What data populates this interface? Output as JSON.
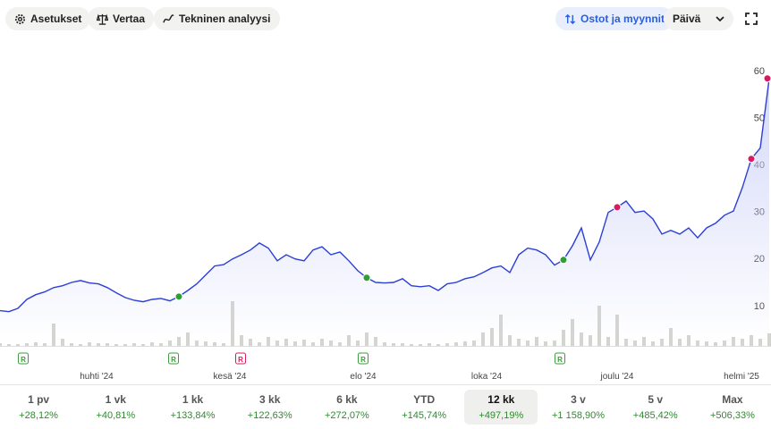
{
  "toolbar": {
    "settings": "Asetukset",
    "compare": "Vertaa",
    "technical": "Tekninen analyysi",
    "trades": "Ostot ja myynnit",
    "interval": "Päivä"
  },
  "chart_data": {
    "type": "line",
    "color": "#2b3fd6",
    "values": [
      8.9,
      8.7,
      9.4,
      11.3,
      12.3,
      12.9,
      13.8,
      14.2,
      14.9,
      15.3,
      14.8,
      14.6,
      13.8,
      12.7,
      11.7,
      11.1,
      10.8,
      11.3,
      11.5,
      11.0,
      11.9,
      13.2,
      14.6,
      16.5,
      18.4,
      18.7,
      19.9,
      20.8,
      21.8,
      23.3,
      22.2,
      19.5,
      20.8,
      19.9,
      19.5,
      21.8,
      22.5,
      20.8,
      21.4,
      19.5,
      17.4,
      15.9,
      14.9,
      14.8,
      14.9,
      15.7,
      14.2,
      14.0,
      14.2,
      13.2,
      14.6,
      14.9,
      15.7,
      16.1,
      17.0,
      18.0,
      18.4,
      17.0,
      20.8,
      22.2,
      21.8,
      20.8,
      18.6,
      19.7,
      22.7,
      26.5,
      19.7,
      23.5,
      29.8,
      30.9,
      32.2,
      29.8,
      30.1,
      28.4,
      25.2,
      26.0,
      25.2,
      26.5,
      24.4,
      26.5,
      27.5,
      29.2,
      30.1,
      35.1,
      41.2,
      43.5,
      58.3
    ],
    "ylim": [
      1.6,
      67
    ],
    "yticks": [
      10,
      20,
      30,
      40,
      50,
      60
    ],
    "xticks": [
      {
        "value": 10.8,
        "label": "huhti '24"
      },
      {
        "value": 25.7,
        "label": "kesä '24"
      },
      {
        "value": 40.6,
        "label": "elo '24"
      },
      {
        "value": 54.4,
        "label": "loka '24"
      },
      {
        "value": 69,
        "label": "joulu '24"
      },
      {
        "value": 82.9,
        "label": "helmi '25"
      }
    ],
    "markers": [
      {
        "index": 20,
        "color": "#2f9e35"
      },
      {
        "index": 41,
        "color": "#2f9e35"
      },
      {
        "index": 63,
        "color": "#2f9e35"
      },
      {
        "index": 69,
        "color": "#d81b60"
      },
      {
        "index": 84,
        "color": "#d81b60"
      },
      {
        "index": 86,
        "color": "#d81b60"
      }
    ],
    "volume": {
      "color": "#d4d4d0",
      "values": [
        3,
        2,
        2,
        3,
        4,
        3,
        25,
        8,
        3,
        2,
        4,
        3,
        3,
        2,
        2,
        3,
        2,
        4,
        3,
        6,
        10,
        15,
        6,
        5,
        4,
        3,
        50,
        12,
        8,
        4,
        10,
        6,
        8,
        5,
        7,
        4,
        8,
        6,
        4,
        12,
        6,
        15,
        10,
        4,
        3,
        3,
        2,
        2,
        3,
        2,
        3,
        4,
        5,
        6,
        15,
        20,
        35,
        12,
        8,
        6,
        10,
        5,
        6,
        18,
        30,
        15,
        12,
        45,
        10,
        35,
        8,
        6,
        10,
        5,
        8,
        20,
        8,
        12,
        6,
        5,
        4,
        6,
        10,
        8,
        12,
        8,
        14
      ]
    },
    "events": [
      {
        "index": 2.6,
        "label": "R",
        "color": "#3a9e3a"
      },
      {
        "index": 19.4,
        "label": "R",
        "color": "#3a9e3a"
      },
      {
        "index": 26.9,
        "label": "R",
        "color": "#d81b60"
      },
      {
        "index": 40.6,
        "label": "R",
        "color": "#3a9e3a"
      },
      {
        "index": 62.6,
        "label": "R",
        "color": "#3a9e3a"
      }
    ]
  },
  "periods": [
    {
      "name": "1 pv",
      "change": "+28,12%"
    },
    {
      "name": "1 vk",
      "change": "+40,81%"
    },
    {
      "name": "1 kk",
      "change": "+133,84%"
    },
    {
      "name": "3 kk",
      "change": "+122,63%"
    },
    {
      "name": "6 kk",
      "change": "+272,07%"
    },
    {
      "name": "YTD",
      "change": "+145,74%"
    },
    {
      "name": "12 kk",
      "change": "+497,19%"
    },
    {
      "name": "3 v",
      "change": "+1 158,90%"
    },
    {
      "name": "5 v",
      "change": "+485,42%"
    },
    {
      "name": "Max",
      "change": "+506,33%"
    }
  ]
}
